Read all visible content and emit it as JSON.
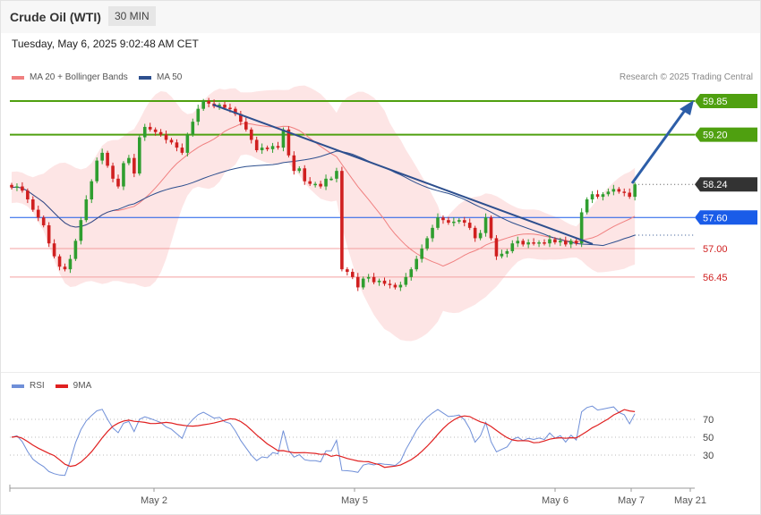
{
  "header": {
    "title": "Crude Oil (WTI)",
    "timeframe": "30 MIN",
    "datetime": "Tuesday, May 6, 2025 9:02:48 AM CET"
  },
  "legend": {
    "ma": "MA 20 + Bollinger Bands",
    "ma50": "MA 50",
    "credit": "Research © 2025 Trading Central",
    "rsi": "RSI",
    "rsi_ma": "9MA"
  },
  "colors": {
    "up": "#2f9e2f",
    "down": "#d02020",
    "band": "#fde0e0",
    "ma20": "#f08080",
    "ma50": "#2d4f8e",
    "resistance": "#4fa010",
    "support": "#f4a0a0",
    "current": "#333333",
    "pivot": "#1a5ce8",
    "rsi": "#6f8fd8",
    "rsi_ma": "#e02020"
  },
  "chart_data": [
    {
      "type": "candlestick",
      "x_ticks": [
        "May 2",
        "May 5",
        "May 6",
        "May 7",
        "May 21"
      ],
      "ylim": [
        55.1,
        60.4
      ],
      "levels": [
        {
          "label": "59.85",
          "value": 59.85,
          "kind": "resistance"
        },
        {
          "label": "59.20",
          "value": 59.2,
          "kind": "resistance"
        },
        {
          "label": "58.24",
          "value": 58.24,
          "kind": "current"
        },
        {
          "label": "57.60",
          "value": 57.6,
          "kind": "pivot"
        },
        {
          "label": "57.00",
          "value": 57.0,
          "kind": "support"
        },
        {
          "label": "56.45",
          "value": 56.45,
          "kind": "support"
        }
      ],
      "closes": [
        58.18,
        58.2,
        58.12,
        57.95,
        57.75,
        57.6,
        57.45,
        57.1,
        56.85,
        56.65,
        56.6,
        56.8,
        57.15,
        57.55,
        57.95,
        58.3,
        58.7,
        58.85,
        58.6,
        58.35,
        58.2,
        58.65,
        58.75,
        58.45,
        59.15,
        59.35,
        59.3,
        59.25,
        59.2,
        59.1,
        59.05,
        58.95,
        58.85,
        59.2,
        59.45,
        59.7,
        59.85,
        59.8,
        59.75,
        59.78,
        59.72,
        59.7,
        59.6,
        59.45,
        59.3,
        59.1,
        58.9,
        58.95,
        58.92,
        58.98,
        58.95,
        59.3,
        58.8,
        58.5,
        58.55,
        58.3,
        58.25,
        58.25,
        58.2,
        58.35,
        58.35,
        58.5,
        56.6,
        56.55,
        56.45,
        56.25,
        56.42,
        56.45,
        56.35,
        56.38,
        56.32,
        56.3,
        56.25,
        56.3,
        56.45,
        56.6,
        56.8,
        57.0,
        57.2,
        57.4,
        57.6,
        57.55,
        57.5,
        57.52,
        57.55,
        57.5,
        57.4,
        57.2,
        57.3,
        57.6,
        57.2,
        56.85,
        56.9,
        56.95,
        57.1,
        57.15,
        57.08,
        57.12,
        57.1,
        57.12,
        57.1,
        57.18,
        57.12,
        57.15,
        57.08,
        57.15,
        57.1,
        57.7,
        57.95,
        58.05,
        58.0,
        58.05,
        58.1,
        58.15,
        58.1,
        58.08,
        58.0,
        58.24
      ],
      "annotations": [
        "downtrend line",
        "target arrow to 59.85"
      ]
    },
    {
      "type": "line",
      "name": "RSI",
      "levels": [
        70,
        50,
        30
      ],
      "ylim": [
        20,
        80
      ]
    }
  ]
}
